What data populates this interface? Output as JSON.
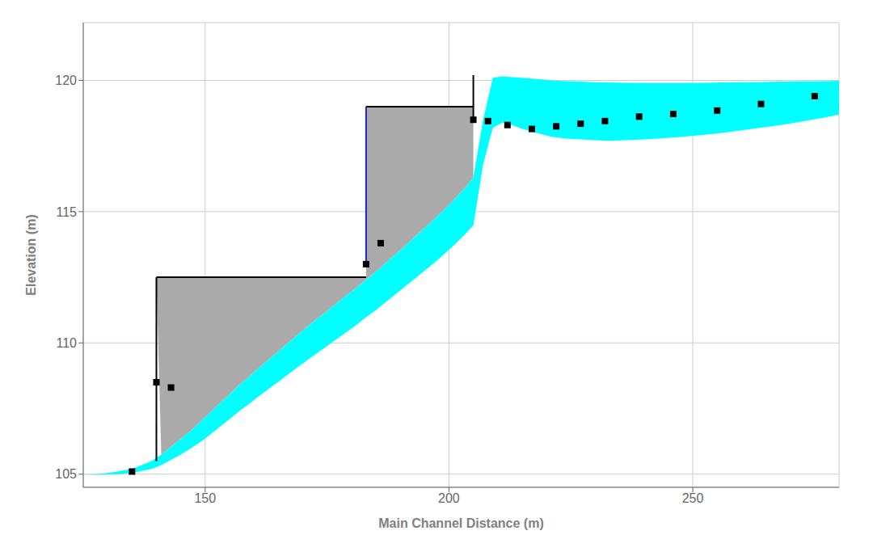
{
  "chart_data": {
    "type": "area",
    "xlabel": "Main Channel Distance (m)",
    "ylabel": "Elevation (m)",
    "xlim": [
      125,
      280
    ],
    "ylim": [
      104.5,
      122.2
    ],
    "xticks": [
      150,
      200,
      250
    ],
    "yticks": [
      105,
      110,
      115,
      120
    ],
    "grid": true,
    "series": [
      {
        "type": "area",
        "color": "cyan",
        "x": [
          125,
          128,
          130,
          132,
          135,
          137,
          139,
          141,
          143,
          145,
          147,
          149,
          151,
          153,
          155,
          157,
          159,
          161,
          163,
          165,
          167,
          169,
          171,
          173,
          175,
          177,
          179,
          181,
          183,
          185,
          187,
          189,
          191,
          193,
          195,
          197,
          199,
          201,
          203,
          205,
          207,
          209,
          211,
          213,
          215,
          218,
          221,
          224,
          227,
          230,
          233,
          236,
          240,
          244,
          248,
          252,
          256,
          260,
          264,
          268,
          272,
          276,
          280
        ],
        "values": [
          104.98,
          105.0,
          105.05,
          105.1,
          105.2,
          105.35,
          105.5,
          105.75,
          106.05,
          106.35,
          106.65,
          107.0,
          107.35,
          107.7,
          108.05,
          108.4,
          108.72,
          109.05,
          109.37,
          109.68,
          110.0,
          110.32,
          110.63,
          110.93,
          111.22,
          111.52,
          111.82,
          112.1,
          112.42,
          112.72,
          113.05,
          113.38,
          113.7,
          114.05,
          114.38,
          114.72,
          115.08,
          115.45,
          115.85,
          116.3,
          118.5,
          120.1,
          120.15,
          120.12,
          120.1,
          120.05,
          120.0,
          119.97,
          119.95,
          119.93,
          119.92,
          119.91,
          119.9,
          119.9,
          119.9,
          119.91,
          119.92,
          119.93,
          119.94,
          119.95,
          119.96,
          119.97,
          119.98
        ],
        "base": [
          104.98,
          104.98,
          104.99,
          105.0,
          105.05,
          105.12,
          105.2,
          105.35,
          105.55,
          105.75,
          105.98,
          106.22,
          106.5,
          106.8,
          107.1,
          107.4,
          107.68,
          107.97,
          108.25,
          108.52,
          108.8,
          109.08,
          109.35,
          109.62,
          109.88,
          110.15,
          110.42,
          110.68,
          110.98,
          111.25,
          111.55,
          111.85,
          112.15,
          112.45,
          112.75,
          113.05,
          113.38,
          113.72,
          114.08,
          114.48,
          116.8,
          118.2,
          118.4,
          118.3,
          118.15,
          118.0,
          117.85,
          117.78,
          117.75,
          117.72,
          117.7,
          117.72,
          117.75,
          117.8,
          117.85,
          117.92,
          118.0,
          118.1,
          118.2,
          118.3,
          118.42,
          118.55,
          118.7
        ]
      },
      {
        "type": "area",
        "color": "#aaaaaa",
        "x": [
          140,
          141,
          143,
          145,
          147,
          149,
          151,
          153,
          155,
          157,
          159,
          161,
          163,
          165,
          167,
          169,
          171,
          173,
          175,
          177,
          179,
          181,
          183,
          183,
          185,
          187,
          189,
          191,
          193,
          195,
          197,
          199,
          201,
          203,
          205
        ],
        "values": [
          112.5,
          112.5,
          112.5,
          112.5,
          112.5,
          112.5,
          112.5,
          112.5,
          112.5,
          112.5,
          112.5,
          112.5,
          112.5,
          112.5,
          112.5,
          112.5,
          112.5,
          112.5,
          112.5,
          112.5,
          112.5,
          112.5,
          112.5,
          119.0,
          119.0,
          119.0,
          119.0,
          119.0,
          119.0,
          119.0,
          119.0,
          119.0,
          119.0,
          119.0,
          119.0
        ],
        "base": [
          112.5,
          105.75,
          106.05,
          106.35,
          106.65,
          107.0,
          107.35,
          107.7,
          108.05,
          108.4,
          108.72,
          109.05,
          109.37,
          109.68,
          110.0,
          110.32,
          110.63,
          110.93,
          111.22,
          111.52,
          111.82,
          112.1,
          112.42,
          112.42,
          112.72,
          113.05,
          113.38,
          113.7,
          114.05,
          114.38,
          114.72,
          115.08,
          115.45,
          115.85,
          116.3
        ]
      },
      {
        "type": "line",
        "color": "#000000",
        "line_style": "solid",
        "x": [
          140,
          183,
          183,
          183,
          205
        ],
        "values": [
          112.5,
          112.5,
          null,
          119.0,
          119.0
        ]
      },
      {
        "type": "line",
        "color": "#000000",
        "line_style": "solid",
        "x": [
          140,
          140
        ],
        "values": [
          105.5,
          112.5
        ]
      },
      {
        "type": "line",
        "color": "#2222bb",
        "line_style": "solid",
        "x": [
          183,
          183
        ],
        "values": [
          113.0,
          119.0
        ]
      },
      {
        "type": "line",
        "color": "#000000",
        "line_style": "solid",
        "x": [
          205,
          205
        ],
        "values": [
          118.5,
          120.2
        ]
      },
      {
        "type": "scatter",
        "color": "#000000",
        "marker": "square",
        "x": [
          135,
          140,
          143,
          183,
          186,
          205,
          208,
          212,
          217,
          222,
          227,
          232,
          239,
          246,
          255,
          264,
          275
        ],
        "values": [
          105.1,
          108.5,
          108.3,
          113.0,
          113.8,
          118.5,
          118.45,
          118.3,
          118.15,
          118.25,
          118.35,
          118.45,
          118.62,
          118.72,
          118.85,
          119.1,
          119.4
        ]
      }
    ]
  }
}
